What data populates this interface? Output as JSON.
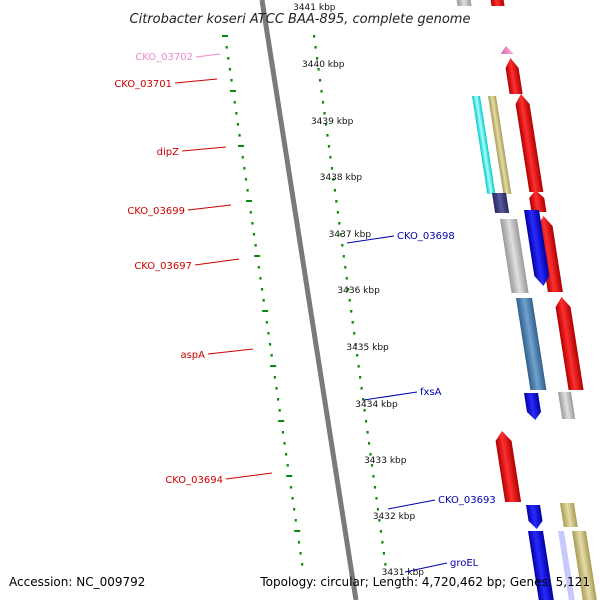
{
  "title": "Citrobacter koseri ATCC BAA-895, complete genome",
  "footer": {
    "accession": "Accession: NC_009792",
    "summary": "Topology: circular; Length: 4,720,462 bp; Genes: 5,121"
  },
  "colors": {
    "forward_gene": "#ff0000",
    "reverse_gene": "#0000ff",
    "left_label": "#cc0000",
    "right_label": "#0000aa",
    "pseudo_label": "#ee88cc",
    "tick_green": "#0a8a0a",
    "backbone": "#7a7a7a"
  },
  "scale": {
    "ticks": [
      {
        "label": "3441 kbp"
      },
      {
        "label": "3440 kbp"
      },
      {
        "label": "3439 kbp"
      },
      {
        "label": "3438 kbp"
      },
      {
        "label": "3437 kbp"
      },
      {
        "label": "3436 kbp"
      },
      {
        "label": "3435 kbp"
      },
      {
        "label": "3434 kbp"
      },
      {
        "label": "3433 kbp"
      },
      {
        "label": "3432 kbp"
      },
      {
        "label": "3431 kbp"
      }
    ]
  },
  "labels": {
    "left": [
      "CKO_03702",
      "CKO_03701",
      "dipZ",
      "CKO_03699",
      "CKO_03697",
      "aspA",
      "CKO_03694"
    ],
    "right": [
      "CKO_03698",
      "fxsA",
      "CKO_03693",
      "groEL"
    ]
  }
}
